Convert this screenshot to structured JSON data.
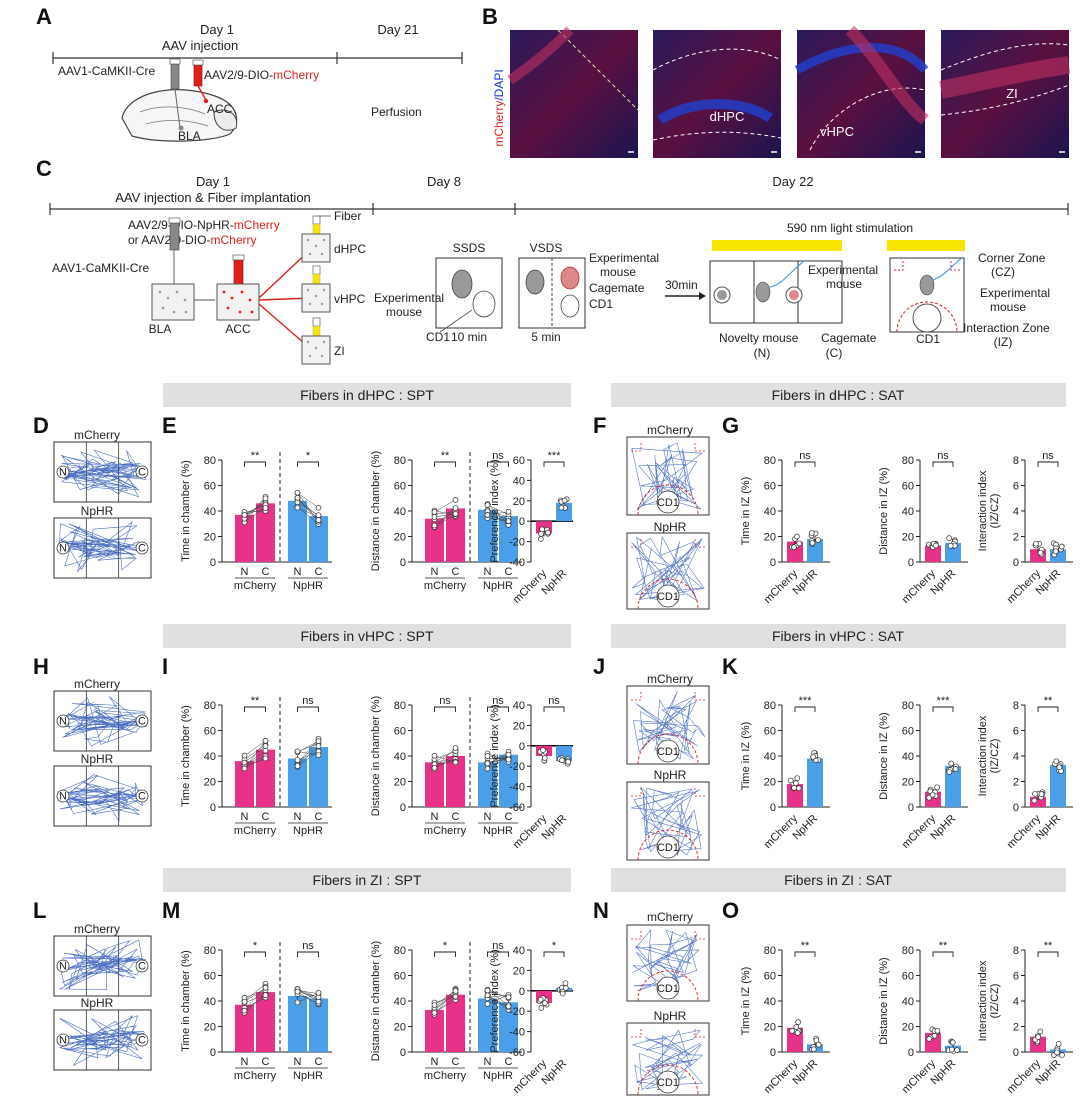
{
  "panel_letters": [
    "A",
    "B",
    "C",
    "D",
    "E",
    "F",
    "G",
    "H",
    "I",
    "J",
    "K",
    "L",
    "M",
    "N",
    "O"
  ],
  "panel_a": {
    "day1": "Day 1",
    "day21": "Day 21",
    "aav_injection": "AAV injection",
    "virus1": "AAV1-CaMKII-Cre",
    "virus2_prefix": "AAV2/9-DIO-",
    "virus2_red": "mCherry",
    "acc": "ACC",
    "bla": "BLA",
    "perfusion": "Perfusion"
  },
  "panel_b": {
    "ylabel_red": "mCherry",
    "ylabel_blue": "/DAPI",
    "labels": [
      "",
      "dHPC",
      "vHPC",
      "ZI"
    ]
  },
  "panel_c": {
    "day1": "Day 1",
    "day8": "Day 8",
    "day22": "Day 22",
    "subtitle": "AAV injection & Fiber implantation",
    "virus_a_prefix": "AAV2/9-DIO-NpHR-",
    "virus_a_red": "mCherry",
    "virus_b_prefix": "or AAV2/9-DIO-",
    "virus_b_red": "mCherry",
    "cre": "AAV1-CaMKII-Cre",
    "fiber": "Fiber",
    "bla": "BLA",
    "acc": "ACC",
    "targets": [
      "dHPC",
      "vHPC",
      "ZI"
    ],
    "ssds": "SSDS",
    "vsds": "VSDS",
    "exp_mouse": "Experimental mouse",
    "cd1": "CD1",
    "ten_min": "10 min",
    "five_min": "5 min",
    "cagemate": "Cagemate",
    "thirty": "30min",
    "light": "590 nm light stimulation",
    "novelty": "Novelty mouse",
    "novelty_n": "(N)",
    "cage_c": "(C)",
    "corner_zone": "Corner Zone",
    "cz": "(CZ)",
    "interaction_zone": "Interaction Zone",
    "iz": "(IZ)"
  },
  "banners": [
    "Fibers in dHPC : SPT",
    "Fibers in dHPC : SAT",
    "Fibers in vHPC : SPT",
    "Fibers in vHPC : SAT",
    "Fibers in ZI : SPT",
    "Fibers in ZI : SAT"
  ],
  "track_labels": {
    "mcherry": "mCherry",
    "nphr": "NpHR",
    "n": "N",
    "c": "C",
    "cd1": "CD1"
  },
  "colors": {
    "mcherry": "#e8328a",
    "nphr": "#4a9fe8",
    "banner": "#e0e0e0",
    "scope": "#e0201a",
    "light": "#f7e600"
  },
  "chart_data": [
    {
      "type": "bar",
      "panel": "E",
      "ylabel": "Time in chamber (%)",
      "ylim": [
        0,
        80
      ],
      "yticks": [
        0,
        20,
        40,
        60,
        80
      ],
      "categories": [
        "N",
        "C",
        "N",
        "C"
      ],
      "groups": [
        "mCherry",
        "NpHR"
      ],
      "values": [
        37,
        46,
        48,
        36
      ],
      "significance": [
        "**",
        "*"
      ]
    },
    {
      "type": "bar",
      "panel": "E",
      "ylabel": "Distance in chamber (%)",
      "ylim": [
        0,
        80
      ],
      "yticks": [
        0,
        20,
        40,
        60,
        80
      ],
      "categories": [
        "N",
        "C",
        "N",
        "C"
      ],
      "groups": [
        "mCherry",
        "NpHR"
      ],
      "values": [
        34,
        42,
        41,
        36
      ],
      "significance": [
        "**",
        "ns"
      ]
    },
    {
      "type": "bar",
      "panel": "E",
      "ylabel": "Preference index (%)",
      "ylim": [
        -40,
        60
      ],
      "yticks": [
        -40,
        -20,
        0,
        20,
        40,
        60
      ],
      "categories": [
        "mCherry",
        "NpHR"
      ],
      "values": [
        -12,
        18
      ],
      "significance": [
        "***"
      ]
    },
    {
      "type": "bar",
      "panel": "G",
      "ylabel": "Time in IZ (%)",
      "ylim": [
        0,
        80
      ],
      "yticks": [
        0,
        20,
        40,
        60,
        80
      ],
      "categories": [
        "mCherry",
        "NpHR"
      ],
      "values": [
        16,
        18
      ],
      "significance": [
        "ns"
      ]
    },
    {
      "type": "bar",
      "panel": "G",
      "ylabel": "Distance in IZ (%)",
      "ylim": [
        0,
        80
      ],
      "yticks": [
        0,
        20,
        40,
        60,
        80
      ],
      "categories": [
        "mCherry",
        "NpHR"
      ],
      "values": [
        13,
        15
      ],
      "significance": [
        "ns"
      ]
    },
    {
      "type": "bar",
      "panel": "G",
      "ylabel": "Interaction index (IZ/CZ)",
      "ylim": [
        0,
        8
      ],
      "yticks": [
        0,
        2,
        4,
        6,
        8
      ],
      "categories": [
        "mCherry",
        "NpHR"
      ],
      "values": [
        1.0,
        1.0
      ],
      "significance": [
        "ns"
      ]
    },
    {
      "type": "bar",
      "panel": "I",
      "ylabel": "Time in chamber (%)",
      "ylim": [
        0,
        80
      ],
      "yticks": [
        0,
        20,
        40,
        60,
        80
      ],
      "categories": [
        "N",
        "C",
        "N",
        "C"
      ],
      "groups": [
        "mCherry",
        "NpHR"
      ],
      "values": [
        36,
        45,
        38,
        47
      ],
      "significance": [
        "**",
        "ns"
      ]
    },
    {
      "type": "bar",
      "panel": "I",
      "ylabel": "Distance in chamber (%)",
      "ylim": [
        0,
        80
      ],
      "yticks": [
        0,
        20,
        40,
        60,
        80
      ],
      "categories": [
        "N",
        "C",
        "N",
        "C"
      ],
      "groups": [
        "mCherry",
        "NpHR"
      ],
      "values": [
        35,
        40,
        35,
        41
      ],
      "significance": [
        "ns",
        "ns"
      ]
    },
    {
      "type": "bar",
      "panel": "I",
      "ylabel": "Preference index (%)",
      "ylim": [
        -60,
        40
      ],
      "yticks": [
        -60,
        -40,
        -20,
        0,
        20,
        40
      ],
      "categories": [
        "mCherry",
        "NpHR"
      ],
      "values": [
        -10,
        -15
      ],
      "significance": [
        "ns"
      ]
    },
    {
      "type": "bar",
      "panel": "K",
      "ylabel": "Time in IZ (%)",
      "ylim": [
        0,
        80
      ],
      "yticks": [
        0,
        20,
        40,
        60,
        80
      ],
      "categories": [
        "mCherry",
        "NpHR"
      ],
      "values": [
        18,
        38
      ],
      "significance": [
        "***"
      ]
    },
    {
      "type": "bar",
      "panel": "K",
      "ylabel": "Distance in IZ (%)",
      "ylim": [
        0,
        80
      ],
      "yticks": [
        0,
        20,
        40,
        60,
        80
      ],
      "categories": [
        "mCherry",
        "NpHR"
      ],
      "values": [
        12,
        32
      ],
      "significance": [
        "***"
      ]
    },
    {
      "type": "bar",
      "panel": "K",
      "ylabel": "Interaction index (IZ/CZ)",
      "ylim": [
        0,
        8
      ],
      "yticks": [
        0,
        2,
        4,
        6,
        8
      ],
      "categories": [
        "mCherry",
        "NpHR"
      ],
      "values": [
        0.8,
        3.3
      ],
      "significance": [
        "**"
      ]
    },
    {
      "type": "bar",
      "panel": "M",
      "ylabel": "Time in chamber (%)",
      "ylim": [
        0,
        80
      ],
      "yticks": [
        0,
        20,
        40,
        60,
        80
      ],
      "categories": [
        "N",
        "C",
        "N",
        "C"
      ],
      "groups": [
        "mCherry",
        "NpHR"
      ],
      "values": [
        37,
        47,
        44,
        42
      ],
      "significance": [
        "*",
        "ns"
      ]
    },
    {
      "type": "bar",
      "panel": "M",
      "ylabel": "Distance in chamber (%)",
      "ylim": [
        0,
        80
      ],
      "yticks": [
        0,
        20,
        40,
        60,
        80
      ],
      "categories": [
        "N",
        "C",
        "N",
        "C"
      ],
      "groups": [
        "mCherry",
        "NpHR"
      ],
      "values": [
        33,
        45,
        42,
        39
      ],
      "significance": [
        "*",
        "ns"
      ]
    },
    {
      "type": "bar",
      "panel": "M",
      "ylabel": "Preference index (%)",
      "ylim": [
        -60,
        40
      ],
      "yticks": [
        -60,
        -40,
        -20,
        0,
        20,
        40
      ],
      "categories": [
        "mCherry",
        "NpHR"
      ],
      "values": [
        -12,
        3
      ],
      "significance": [
        "*"
      ]
    },
    {
      "type": "bar",
      "panel": "O",
      "ylabel": "Time in IZ (%)",
      "ylim": [
        0,
        80
      ],
      "yticks": [
        0,
        20,
        40,
        60,
        80
      ],
      "categories": [
        "mCherry",
        "NpHR"
      ],
      "values": [
        19,
        6
      ],
      "significance": [
        "**"
      ]
    },
    {
      "type": "bar",
      "panel": "O",
      "ylabel": "Distance in IZ (%)",
      "ylim": [
        0,
        80
      ],
      "yticks": [
        0,
        20,
        40,
        60,
        80
      ],
      "categories": [
        "mCherry",
        "NpHR"
      ],
      "values": [
        15,
        5
      ],
      "significance": [
        "**"
      ]
    },
    {
      "type": "bar",
      "panel": "O",
      "ylabel": "Interaction index (IZ/CZ)",
      "ylim": [
        0,
        8
      ],
      "yticks": [
        0,
        2,
        4,
        6,
        8
      ],
      "categories": [
        "mCherry",
        "NpHR"
      ],
      "values": [
        1.2,
        0.2
      ],
      "significance": [
        "**"
      ]
    }
  ]
}
